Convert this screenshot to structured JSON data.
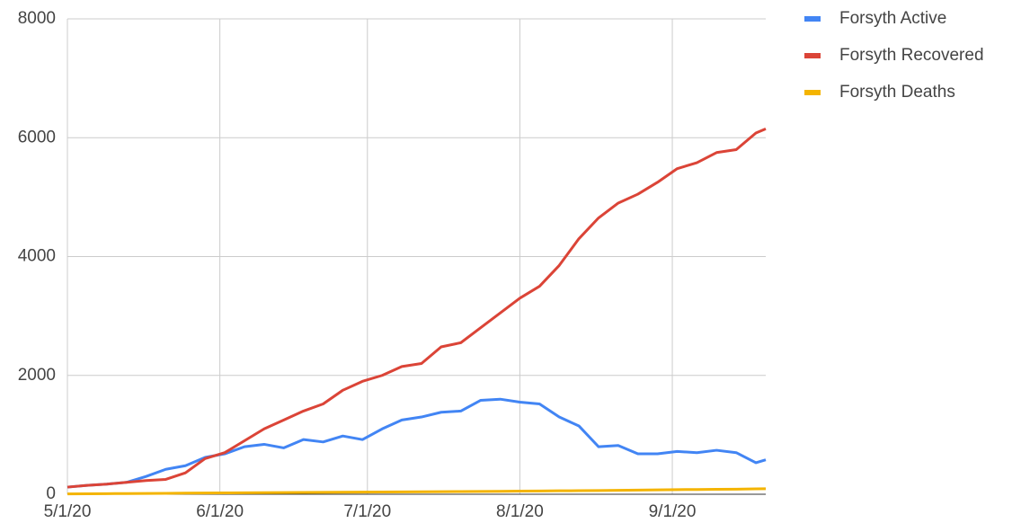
{
  "chart_data": {
    "type": "line",
    "x": [
      "5/1/20",
      "5/5/20",
      "5/9/20",
      "5/13/20",
      "5/17/20",
      "5/21/20",
      "5/25/20",
      "5/29/20",
      "6/2/20",
      "6/6/20",
      "6/10/20",
      "6/14/20",
      "6/18/20",
      "6/22/20",
      "6/26/20",
      "6/30/20",
      "7/4/20",
      "7/8/20",
      "7/12/20",
      "7/16/20",
      "7/20/20",
      "7/24/20",
      "7/28/20",
      "8/1/20",
      "8/5/20",
      "8/9/20",
      "8/13/20",
      "8/17/20",
      "8/21/20",
      "8/25/20",
      "8/29/20",
      "9/2/20",
      "9/6/20",
      "9/10/20",
      "9/14/20",
      "9/18/20",
      "9/20/20"
    ],
    "series": [
      {
        "name": "Forsyth Active",
        "color": "#4285f4",
        "values": [
          120,
          150,
          170,
          200,
          300,
          420,
          480,
          620,
          680,
          800,
          840,
          780,
          920,
          880,
          980,
          920,
          1100,
          1250,
          1300,
          1380,
          1400,
          1580,
          1600,
          1550,
          1520,
          1300,
          1150,
          800,
          820,
          680,
          680,
          720,
          700,
          740,
          700,
          530,
          580
        ]
      },
      {
        "name": "Forsyth Recovered",
        "color": "#db4437",
        "values": [
          120,
          150,
          170,
          200,
          230,
          250,
          360,
          600,
          700,
          900,
          1100,
          1250,
          1400,
          1520,
          1750,
          1900,
          2000,
          2150,
          2200,
          2480,
          2550,
          2800,
          3050,
          3300,
          3500,
          3850,
          4300,
          4650,
          4900,
          5050,
          5250,
          5480,
          5580,
          5750,
          5800,
          6080,
          6150
        ]
      },
      {
        "name": "Forsyth Deaths",
        "color": "#f4b400",
        "values": [
          5,
          8,
          10,
          12,
          14,
          16,
          18,
          20,
          22,
          24,
          26,
          28,
          30,
          32,
          34,
          36,
          38,
          40,
          42,
          44,
          46,
          48,
          50,
          52,
          55,
          58,
          60,
          63,
          66,
          70,
          74,
          78,
          80,
          84,
          86,
          90,
          92
        ]
      }
    ],
    "xlim": [
      "5/1/20",
      "9/20/20"
    ],
    "xticks": [
      "5/1/20",
      "6/1/20",
      "7/1/20",
      "8/1/20",
      "9/1/20"
    ],
    "ylim": [
      0,
      8000
    ],
    "yticks": [
      0,
      2000,
      4000,
      6000,
      8000
    ],
    "grid": true,
    "legend": "right"
  }
}
